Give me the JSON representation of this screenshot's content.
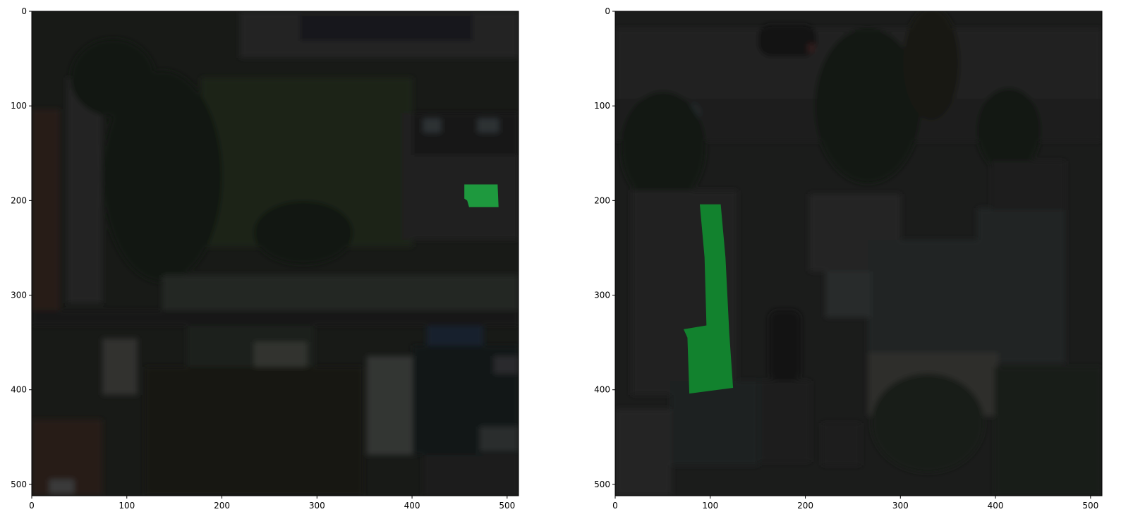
{
  "figure": {
    "panels": [
      {
        "name": "left",
        "image_description": "darkened aerial view: lawn, trees, houses, a road; green mask on a roof",
        "mask_color": "#1fa040",
        "xlim": [
          0,
          512
        ],
        "ylim": [
          512,
          0
        ],
        "xticks": [
          0,
          100,
          200,
          300,
          400,
          500
        ],
        "yticks": [
          0,
          100,
          200,
          300,
          400,
          500
        ],
        "mask_polygon": [
          [
            455,
            183
          ],
          [
            490,
            183
          ],
          [
            491,
            207
          ],
          [
            460,
            207
          ],
          [
            458,
            200
          ],
          [
            455,
            198
          ]
        ]
      },
      {
        "name": "right",
        "image_description": "darkened aerial view: street, parked cars, row of roofs; green mask on a roof",
        "mask_color": "#12882f",
        "xlim": [
          0,
          512
        ],
        "ylim": [
          512,
          0
        ],
        "xticks": [
          0,
          100,
          200,
          300,
          400,
          500
        ],
        "yticks": [
          0,
          100,
          200,
          300,
          400,
          500
        ],
        "mask_polygon": [
          [
            89,
            204
          ],
          [
            111,
            204
          ],
          [
            116,
            260
          ],
          [
            120,
            340
          ],
          [
            124,
            398
          ],
          [
            78,
            404
          ],
          [
            76,
            345
          ],
          [
            72,
            336
          ],
          [
            96,
            332
          ],
          [
            94,
            260
          ]
        ]
      }
    ]
  }
}
